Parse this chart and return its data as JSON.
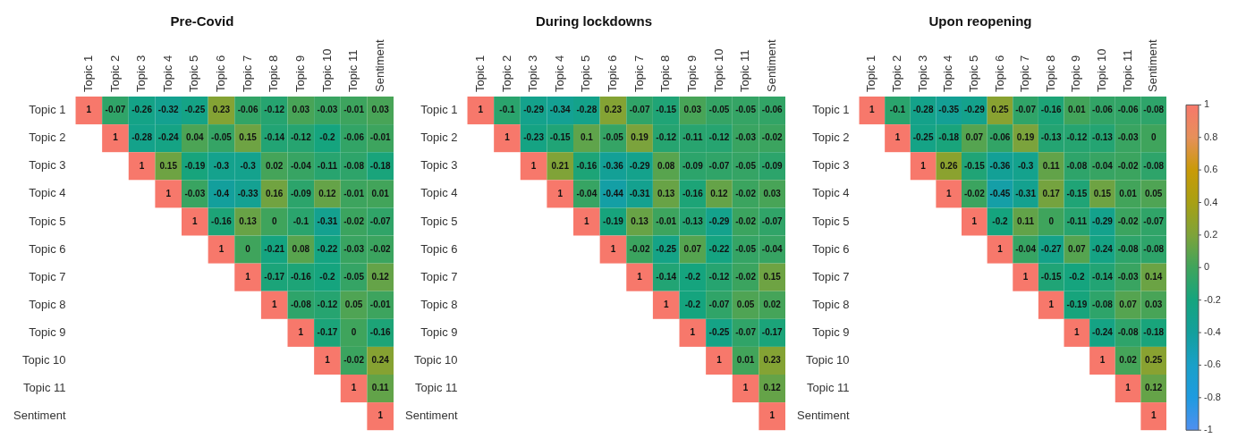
{
  "chart_data": [
    {
      "type": "heatmap",
      "title": "Pre-Covid",
      "categories": [
        "Topic 1",
        "Topic 2",
        "Topic 3",
        "Topic 4",
        "Topic 5",
        "Topic 6",
        "Topic 7",
        "Topic 8",
        "Topic 9",
        "Topic 10",
        "Topic 11",
        "Sentiment"
      ],
      "y_categories": [
        "Topic 1",
        "Topic 2",
        "Topic 3",
        "Topic 4",
        "Topic 5",
        "Topic 6",
        "Topic 7",
        "Topic 8",
        "Topic 9",
        "Topic 10",
        "Topic 11",
        "Sentiment"
      ],
      "cells": [
        [
          1,
          -0.07,
          -0.26,
          -0.32,
          -0.25,
          0.23,
          -0.06,
          -0.12,
          0.03,
          -0.03,
          -0.01,
          0.03
        ],
        [
          null,
          1,
          -0.28,
          -0.24,
          0.04,
          -0.05,
          0.15,
          -0.14,
          -0.12,
          -0.2,
          -0.06,
          -0.01
        ],
        [
          null,
          null,
          1,
          0.15,
          -0.19,
          -0.3,
          -0.3,
          0.02,
          -0.04,
          -0.11,
          -0.08,
          -0.18
        ],
        [
          null,
          null,
          null,
          1,
          -0.03,
          -0.4,
          -0.33,
          0.16,
          -0.09,
          0.12,
          -0.01,
          0.01
        ],
        [
          null,
          null,
          null,
          null,
          1,
          -0.16,
          0.13,
          0,
          -0.1,
          -0.31,
          -0.02,
          -0.07
        ],
        [
          null,
          null,
          null,
          null,
          null,
          1,
          0,
          -0.21,
          0.08,
          -0.22,
          -0.03,
          -0.02
        ],
        [
          null,
          null,
          null,
          null,
          null,
          null,
          1,
          -0.17,
          -0.16,
          -0.2,
          -0.05,
          0.12
        ],
        [
          null,
          null,
          null,
          null,
          null,
          null,
          null,
          1,
          -0.08,
          -0.12,
          0.05,
          -0.01
        ],
        [
          null,
          null,
          null,
          null,
          null,
          null,
          null,
          null,
          1,
          -0.17,
          0,
          -0.16
        ],
        [
          null,
          null,
          null,
          null,
          null,
          null,
          null,
          null,
          null,
          1,
          -0.02,
          0.24
        ],
        [
          null,
          null,
          null,
          null,
          null,
          null,
          null,
          null,
          null,
          null,
          1,
          0.11
        ],
        [
          null,
          null,
          null,
          null,
          null,
          null,
          null,
          null,
          null,
          null,
          null,
          1
        ]
      ],
      "data_labels": true
    },
    {
      "type": "heatmap",
      "title": "During lockdowns",
      "categories": [
        "Topic 1",
        "Topic 2",
        "Topic 3",
        "Topic 4",
        "Topic 5",
        "Topic 6",
        "Topic 7",
        "Topic 8",
        "Topic 9",
        "Topic 10",
        "Topic 11",
        "Sentiment"
      ],
      "y_categories": [
        "Topic 1",
        "Topic 2",
        "Topic 3",
        "Topic 4",
        "Topic 5",
        "Topic 6",
        "Topic 7",
        "Topic 8",
        "Topic 9",
        "Topic 10",
        "Topic 11",
        "Sentiment"
      ],
      "cells": [
        [
          1,
          -0.1,
          -0.29,
          -0.34,
          -0.28,
          0.23,
          -0.07,
          -0.15,
          0.03,
          -0.05,
          -0.05,
          -0.06
        ],
        [
          null,
          1,
          -0.23,
          -0.15,
          0.1,
          -0.05,
          0.19,
          -0.12,
          -0.11,
          -0.12,
          -0.03,
          -0.02
        ],
        [
          null,
          null,
          1,
          0.21,
          -0.16,
          -0.36,
          -0.29,
          0.08,
          -0.09,
          -0.07,
          -0.05,
          -0.09
        ],
        [
          null,
          null,
          null,
          1,
          -0.04,
          -0.44,
          -0.31,
          0.13,
          -0.16,
          0.12,
          -0.02,
          0.03
        ],
        [
          null,
          null,
          null,
          null,
          1,
          -0.19,
          0.13,
          -0.01,
          -0.13,
          -0.29,
          -0.02,
          -0.07
        ],
        [
          null,
          null,
          null,
          null,
          null,
          1,
          -0.02,
          -0.25,
          0.07,
          -0.22,
          -0.05,
          -0.04
        ],
        [
          null,
          null,
          null,
          null,
          null,
          null,
          1,
          -0.14,
          -0.2,
          -0.12,
          -0.02,
          0.15
        ],
        [
          null,
          null,
          null,
          null,
          null,
          null,
          null,
          1,
          -0.2,
          -0.07,
          0.05,
          0.02
        ],
        [
          null,
          null,
          null,
          null,
          null,
          null,
          null,
          null,
          1,
          -0.25,
          -0.07,
          -0.17
        ],
        [
          null,
          null,
          null,
          null,
          null,
          null,
          null,
          null,
          null,
          1,
          0.01,
          0.23
        ],
        [
          null,
          null,
          null,
          null,
          null,
          null,
          null,
          null,
          null,
          null,
          1,
          0.12
        ],
        [
          null,
          null,
          null,
          null,
          null,
          null,
          null,
          null,
          null,
          null,
          null,
          1
        ]
      ],
      "data_labels": true
    },
    {
      "type": "heatmap",
      "title": "Upon reopening",
      "categories": [
        "Topic 1",
        "Topic 2",
        "Topic 3",
        "Topic 4",
        "Topic 5",
        "Topic 6",
        "Topic 7",
        "Topic 8",
        "Topic 9",
        "Topic 10",
        "Topic 11",
        "Sentiment"
      ],
      "y_categories": [
        "Topic 1",
        "Topic 2",
        "Topic 3",
        "Topic 4",
        "Topic 5",
        "Topic 6",
        "Topic 7",
        "Topic 8",
        "Topic 9",
        "Topic 10",
        "Topic 11",
        "Sentiment"
      ],
      "cells": [
        [
          1,
          -0.1,
          -0.28,
          -0.35,
          -0.29,
          0.25,
          -0.07,
          -0.16,
          0.01,
          -0.06,
          -0.06,
          -0.08
        ],
        [
          null,
          1,
          -0.25,
          -0.18,
          0.07,
          -0.06,
          0.19,
          -0.13,
          -0.12,
          -0.13,
          -0.03,
          0
        ],
        [
          null,
          null,
          1,
          0.26,
          -0.15,
          -0.36,
          -0.3,
          0.11,
          -0.08,
          -0.04,
          -0.02,
          -0.08
        ],
        [
          null,
          null,
          null,
          1,
          -0.02,
          -0.45,
          -0.31,
          0.17,
          -0.15,
          0.15,
          0.01,
          0.05
        ],
        [
          null,
          null,
          null,
          null,
          1,
          -0.2,
          0.11,
          0,
          -0.11,
          -0.29,
          -0.02,
          -0.07
        ],
        [
          null,
          null,
          null,
          null,
          null,
          1,
          -0.04,
          -0.27,
          0.07,
          -0.24,
          -0.08,
          -0.08
        ],
        [
          null,
          null,
          null,
          null,
          null,
          null,
          1,
          -0.15,
          -0.2,
          -0.14,
          -0.03,
          0.14
        ],
        [
          null,
          null,
          null,
          null,
          null,
          null,
          null,
          1,
          -0.19,
          -0.08,
          0.07,
          0.03
        ],
        [
          null,
          null,
          null,
          null,
          null,
          null,
          null,
          null,
          1,
          -0.24,
          -0.08,
          -0.18
        ],
        [
          null,
          null,
          null,
          null,
          null,
          null,
          null,
          null,
          null,
          1,
          0.02,
          0.25
        ],
        [
          null,
          null,
          null,
          null,
          null,
          null,
          null,
          null,
          null,
          null,
          1,
          0.12
        ],
        [
          null,
          null,
          null,
          null,
          null,
          null,
          null,
          null,
          null,
          null,
          null,
          1
        ]
      ],
      "data_labels": true,
      "clim": [
        -1,
        1
      ],
      "cticks": [
        -1,
        -0.8,
        -0.6,
        -0.4,
        -0.2,
        0,
        0.2,
        0.4,
        0.6,
        0.8,
        1
      ]
    }
  ]
}
